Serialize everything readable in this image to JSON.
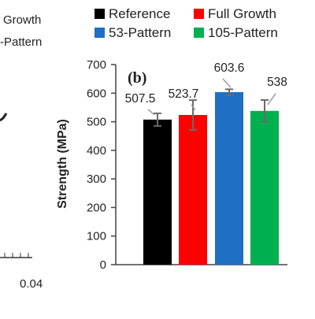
{
  "neighbor_panel": {
    "legend_fragments": [
      "Growth",
      "-Pattern"
    ],
    "x_tick": "0.04"
  },
  "chart_data": {
    "type": "bar",
    "panel_label": "(b)",
    "categories": [
      "Reference",
      "Full Growth",
      "53-Pattern",
      "105-Pattern"
    ],
    "values": [
      507.5,
      523.7,
      603.6,
      538
    ],
    "value_labels": [
      "507.5",
      "523.7",
      "603.6",
      "538"
    ],
    "errors": [
      22,
      52,
      10,
      38
    ],
    "colors": [
      "#000000",
      "#ff0000",
      "#1f6fc5",
      "#00b050"
    ],
    "ylabel": "Strength (MPa)",
    "ylim": [
      0,
      700
    ],
    "yticks": [
      0,
      100,
      200,
      300,
      400,
      500,
      600,
      700
    ],
    "grid": false,
    "legend_placement": "top"
  }
}
